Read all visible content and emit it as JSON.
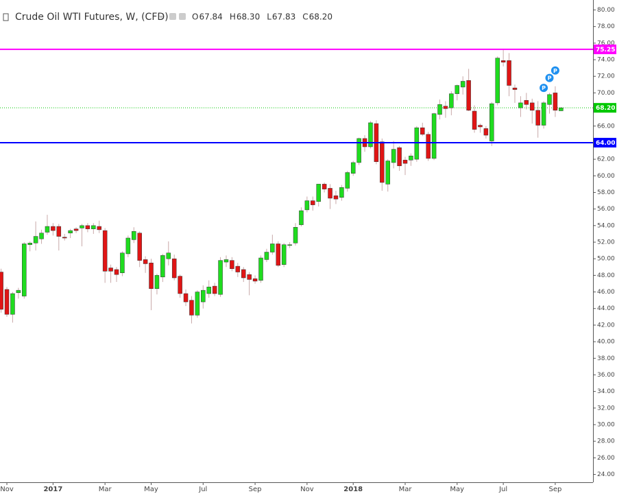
{
  "chart_data": {
    "type": "candlestick",
    "title": "Crude Oil WTI Futures, W, (CFD)",
    "ohlc_labels": [
      "O",
      "H",
      "L",
      "C"
    ],
    "last_value_labels": [
      "67.84",
      "68.30",
      "67.83",
      "68.20"
    ],
    "categories": [
      null,
      "Nov",
      null,
      null,
      null,
      null,
      null,
      null,
      null,
      "2017",
      null,
      null,
      null,
      null,
      null,
      null,
      null,
      null,
      "Mar",
      null,
      null,
      null,
      null,
      null,
      null,
      null,
      "May",
      null,
      null,
      null,
      null,
      null,
      null,
      null,
      null,
      "Jul",
      null,
      null,
      null,
      null,
      null,
      null,
      null,
      null,
      "Sep",
      null,
      null,
      null,
      null,
      null,
      null,
      null,
      null,
      "Nov",
      null,
      null,
      null,
      null,
      null,
      null,
      null,
      "2018",
      null,
      null,
      null,
      null,
      null,
      null,
      null,
      null,
      "Mar",
      null,
      null,
      null,
      null,
      null,
      null,
      null,
      null,
      "May",
      null,
      null,
      null,
      null,
      null,
      null,
      null,
      "Jul",
      null,
      null,
      null,
      null,
      null,
      null,
      null,
      null,
      "Sep",
      null
    ],
    "open": [
      48.4,
      46.3,
      43.3,
      45.9,
      45.5,
      51.7,
      51.9,
      52.4,
      53.2,
      53.9,
      53.9,
      52.6,
      53.1,
      53.6,
      53.7,
      54.0,
      53.6,
      53.9,
      53.4,
      48.9,
      48.7,
      48.3,
      50.6,
      52.3,
      53.1,
      49.9,
      49.5,
      46.4,
      47.8,
      50.0,
      50.0,
      47.9,
      45.8,
      45.0,
      43.2,
      44.8,
      45.8,
      46.7,
      45.7,
      49.6,
      49.8,
      49.1,
      48.7,
      48.1,
      47.6,
      47.4,
      49.9,
      50.8,
      51.8,
      49.3,
      51.6,
      51.9,
      54.1,
      55.9,
      57.0,
      56.9,
      59.0,
      58.5,
      57.6,
      57.4,
      58.5,
      60.3,
      61.6,
      64.5,
      63.5,
      66.3,
      64.1,
      59.0,
      61.6,
      63.4,
      61.9,
      61.9,
      62.0,
      65.8,
      65.0,
      62.1,
      67.4,
      68.4,
      68.2,
      69.9,
      70.7,
      71.5,
      67.8,
      66.1,
      65.7,
      64.2,
      68.8,
      73.9,
      73.9,
      70.6,
      68.2,
      69.1,
      68.8,
      67.9,
      66.1,
      68.6,
      70.0,
      67.84
    ],
    "high": [
      48.8,
      46.6,
      46.0,
      46.5,
      52.0,
      52.1,
      54.5,
      53.5,
      55.3,
      54.3,
      54.2,
      53.0,
      53.6,
      53.8,
      54.2,
      54.3,
      54.3,
      54.6,
      53.7,
      49.3,
      49.0,
      50.9,
      52.8,
      53.8,
      53.3,
      50.3,
      50.0,
      48.2,
      50.6,
      52.1,
      50.5,
      48.1,
      46.3,
      45.5,
      46.2,
      46.8,
      47.4,
      47.1,
      50.2,
      50.4,
      50.2,
      49.5,
      49.0,
      48.4,
      48.0,
      50.4,
      51.2,
      52.9,
      52.1,
      51.9,
      52.0,
      54.3,
      56.2,
      57.5,
      57.5,
      59.0,
      59.2,
      59.0,
      58.2,
      58.9,
      60.6,
      61.8,
      64.6,
      64.9,
      66.6,
      66.7,
      64.5,
      62.0,
      64.2,
      63.6,
      62.3,
      62.7,
      66.0,
      66.4,
      65.3,
      67.6,
      69.2,
      69.0,
      70.2,
      71.0,
      72.0,
      72.9,
      68.5,
      66.3,
      66.0,
      68.9,
      74.4,
      75.3,
      74.8,
      71.0,
      69.6,
      70.0,
      69.3,
      69.0,
      69.0,
      70.0,
      70.8,
      68.3
    ],
    "low": [
      43.5,
      43.0,
      42.3,
      45.2,
      45.2,
      50.9,
      51.0,
      51.8,
      52.9,
      52.8,
      51.0,
      52.2,
      52.5,
      53.1,
      51.5,
      53.2,
      53.0,
      53.1,
      47.1,
      47.1,
      47.2,
      47.9,
      50.2,
      51.9,
      49.0,
      48.3,
      43.8,
      45.7,
      47.2,
      49.2,
      47.4,
      45.3,
      44.3,
      42.2,
      42.9,
      44.0,
      45.3,
      45.5,
      45.4,
      49.0,
      48.5,
      47.8,
      47.2,
      45.6,
      47.0,
      47.1,
      49.6,
      50.5,
      49.0,
      49.0,
      51.3,
      51.6,
      53.9,
      55.6,
      55.8,
      56.3,
      58.0,
      56.0,
      56.6,
      57.0,
      58.1,
      60.0,
      61.3,
      62.9,
      63.3,
      61.4,
      58.2,
      58.1,
      60.9,
      60.6,
      60.1,
      61.2,
      61.7,
      64.8,
      61.8,
      61.9,
      66.8,
      67.0,
      67.3,
      69.1,
      69.8,
      67.8,
      65.2,
      65.2,
      64.5,
      63.6,
      68.5,
      73.2,
      69.6,
      68.8,
      67.1,
      68.0,
      66.3,
      64.6,
      65.7,
      67.5,
      67.1,
      67.83
    ],
    "close": [
      43.9,
      43.3,
      45.8,
      46.2,
      51.8,
      51.9,
      52.7,
      53.1,
      53.9,
      53.4,
      52.7,
      52.5,
      53.4,
      53.4,
      54.0,
      53.6,
      54.0,
      53.5,
      48.5,
      48.5,
      48.1,
      50.7,
      52.5,
      53.3,
      49.8,
      49.4,
      46.4,
      48.0,
      50.4,
      50.7,
      47.7,
      45.8,
      44.8,
      43.2,
      46.0,
      46.2,
      46.6,
      45.8,
      49.8,
      49.9,
      48.8,
      48.4,
      47.7,
      47.5,
      47.3,
      50.1,
      50.8,
      51.8,
      49.2,
      51.7,
      51.7,
      53.8,
      55.8,
      57.0,
      56.5,
      59.0,
      58.4,
      57.3,
      57.2,
      58.6,
      60.4,
      61.6,
      64.5,
      63.5,
      66.4,
      61.7,
      59.2,
      61.8,
      63.2,
      61.2,
      61.5,
      62.4,
      65.8,
      65.0,
      62.1,
      67.5,
      68.6,
      68.1,
      69.9,
      70.9,
      71.4,
      67.9,
      65.6,
      65.9,
      64.9,
      68.7,
      74.2,
      73.7,
      70.9,
      70.4,
      68.8,
      68.6,
      67.9,
      66.1,
      68.8,
      69.8,
      67.9,
      68.2
    ],
    "up_color": "#1fdc1f",
    "down_color": "#e01515",
    "markers": {
      "label": "P",
      "color": "#1e90f0",
      "values": [
        null,
        null,
        null,
        null,
        null,
        null,
        null,
        null,
        null,
        null,
        null,
        null,
        null,
        null,
        null,
        null,
        null,
        null,
        null,
        null,
        null,
        null,
        null,
        null,
        null,
        null,
        null,
        null,
        null,
        null,
        null,
        null,
        null,
        null,
        null,
        null,
        null,
        null,
        null,
        null,
        null,
        null,
        null,
        null,
        null,
        null,
        null,
        null,
        null,
        null,
        null,
        null,
        null,
        null,
        null,
        null,
        null,
        null,
        null,
        null,
        null,
        null,
        null,
        null,
        null,
        null,
        null,
        null,
        null,
        null,
        null,
        null,
        null,
        null,
        null,
        null,
        null,
        null,
        null,
        null,
        null,
        null,
        null,
        null,
        null,
        null,
        null,
        null,
        null,
        null,
        null,
        null,
        null,
        null,
        70.6,
        71.8,
        72.7,
        null
      ]
    },
    "hlines": [
      {
        "value": 75.25,
        "label": "75.25",
        "color": "#ff00ff"
      },
      {
        "value": 64,
        "label": "64.00",
        "color": "#0000ff"
      }
    ],
    "last_price": {
      "value": 68.2,
      "label": "68.20",
      "color": "#00c800"
    },
    "ylim": [
      23.3,
      81.2
    ],
    "yticks": [
      {
        "value": 24,
        "label": "24.00"
      },
      {
        "value": 26,
        "label": "26.00"
      },
      {
        "value": 28,
        "label": "28.00"
      },
      {
        "value": 30,
        "label": "30.00"
      },
      {
        "value": 32,
        "label": "32.00"
      },
      {
        "value": 34,
        "label": "34.00"
      },
      {
        "value": 36,
        "label": "36.00"
      },
      {
        "value": 38,
        "label": "38.00"
      },
      {
        "value": 40,
        "label": "40.00"
      },
      {
        "value": 42,
        "label": "42.00"
      },
      {
        "value": 44,
        "label": "44.00"
      },
      {
        "value": 46,
        "label": "46.00"
      },
      {
        "value": 48,
        "label": "48.00"
      },
      {
        "value": 50,
        "label": "50.00"
      },
      {
        "value": 52,
        "label": "52.00"
      },
      {
        "value": 54,
        "label": "54.00"
      },
      {
        "value": 56,
        "label": "56.00"
      },
      {
        "value": 58,
        "label": "58.00"
      },
      {
        "value": 60,
        "label": "60.00"
      },
      {
        "value": 62,
        "label": "62.00"
      },
      {
        "value": 64,
        "label": "64.00"
      },
      {
        "value": 66,
        "label": "66.00"
      },
      {
        "value": 68,
        "label": "68.00"
      },
      {
        "value": 70,
        "label": "70.00"
      },
      {
        "value": 72,
        "label": "72.00"
      },
      {
        "value": 74,
        "label": "74.00"
      },
      {
        "value": 76,
        "label": "76.00"
      },
      {
        "value": 78,
        "label": "78.00"
      },
      {
        "value": 80,
        "label": "80.00"
      }
    ]
  }
}
